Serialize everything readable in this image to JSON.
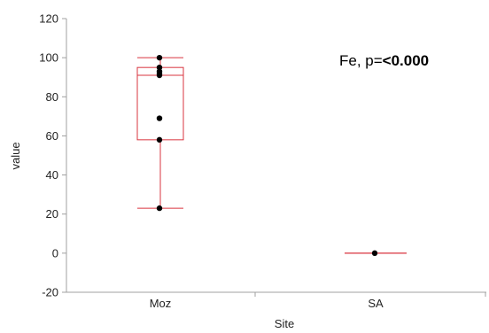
{
  "chart_data": {
    "type": "box",
    "xlabel": "Site",
    "ylabel": "value",
    "ylim": [
      -20,
      120
    ],
    "yticks": [
      -20,
      0,
      20,
      40,
      60,
      80,
      100,
      120
    ],
    "categories": [
      "Moz",
      "SA"
    ],
    "boxes": [
      {
        "category": "Moz",
        "min": 23,
        "q1": 58,
        "median": 91,
        "q3": 95,
        "max": 100,
        "points": [
          100,
          95,
          93,
          92,
          91,
          69,
          58,
          23
        ]
      },
      {
        "category": "SA",
        "min": 0,
        "q1": 0,
        "median": 0,
        "q3": 0,
        "max": 0,
        "points": [
          0
        ]
      }
    ],
    "annotation": {
      "prefix": "Fe, p=",
      "value": "<0.000"
    },
    "grid": false
  },
  "colors": {
    "box": "#d9343f",
    "point": "#000000",
    "axis": "#a0a0a0"
  }
}
